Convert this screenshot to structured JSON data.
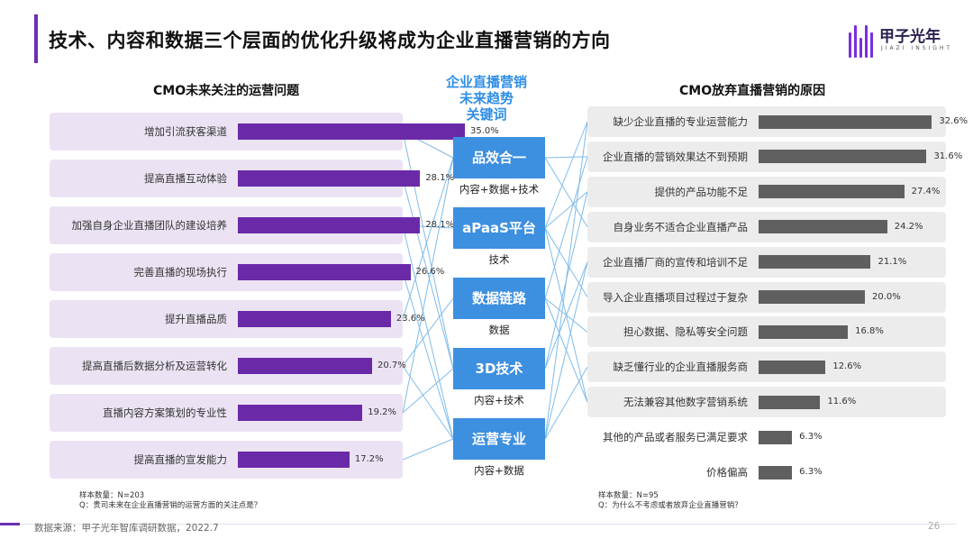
{
  "header": {
    "title": "技术、内容和数据三个层面的优化升级将成为企业直播营销的方向",
    "logo_text": "甲子光年",
    "logo_sub": "JIAZI INSIGHT",
    "accent_color": "#6b2fb3",
    "logo_icon": "jiazi-logo-icon"
  },
  "center": {
    "heading": [
      "企业直播营销",
      "未来趋势",
      "关键词"
    ],
    "color": "#3d8fe0",
    "hubs": [
      {
        "label": "品效合一",
        "sub": "内容+数据+技术"
      },
      {
        "label": "aPaaS平台",
        "sub": "技术"
      },
      {
        "label": "数据链路",
        "sub": "数据"
      },
      {
        "label": "3D技术",
        "sub": "内容+技术"
      },
      {
        "label": "运营专业",
        "sub": "内容+数据"
      }
    ]
  },
  "chart_data": [
    {
      "type": "bar",
      "orientation": "horizontal",
      "title": "CMO未来关注的运营问题",
      "categories": [
        "增加引流获客渠道",
        "提高直播互动体验",
        "加强自身企业直播团队的建设培养",
        "完善直播的现场执行",
        "提升直播品质",
        "提高直播后数据分析及运营转化",
        "直播内容方案策划的专业性",
        "提高直播的宣发能力"
      ],
      "values": [
        35.0,
        28.1,
        28.1,
        26.6,
        23.6,
        20.7,
        19.2,
        17.2
      ],
      "value_labels": [
        "35.0%",
        "28.1%",
        "28.1%",
        "26.6%",
        "23.6%",
        "20.7%",
        "19.2%",
        "17.2%"
      ],
      "unit": "%",
      "bar_color": "#6a2aa8",
      "row_bg_color": "#ebe3f3",
      "note": [
        "样本数量：N=203",
        "Q：贵司未来在企业直播营销的运营方面的关注点是？"
      ]
    },
    {
      "type": "bar",
      "orientation": "horizontal",
      "title": "CMO放弃直播营销的原因",
      "categories": [
        "缺少企业直播的专业运营能力",
        "企业直播的营销效果达不到预期",
        "提供的产品功能不足",
        "自身业务不适合企业直播产品",
        "企业直播厂商的宣传和培训不足",
        "导入企业直播项目过程过于复杂",
        "担心数据、隐私等安全问题",
        "缺乏懂行业的企业直播服务商",
        "无法兼容其他数字营销系统",
        "其他的产品或者服务已满足要求",
        "价格偏高"
      ],
      "values": [
        32.6,
        31.6,
        27.4,
        24.2,
        21.1,
        20.0,
        16.8,
        12.6,
        11.6,
        6.3,
        6.3
      ],
      "value_labels": [
        "32.6%",
        "31.6%",
        "27.4%",
        "24.2%",
        "21.1%",
        "20.0%",
        "16.8%",
        "12.6%",
        "11.6%",
        "6.3%",
        "6.3%"
      ],
      "unit": "%",
      "bar_color": "#5f5f5f",
      "row_bg_color": "#ececec",
      "note": [
        "样本数量：N=95",
        "Q：为什么不考虑或者放弃企业直播营销？"
      ]
    }
  ],
  "footer": {
    "source": "数据来源：甲子光年智库调研数据，2022.7",
    "page": "26"
  }
}
